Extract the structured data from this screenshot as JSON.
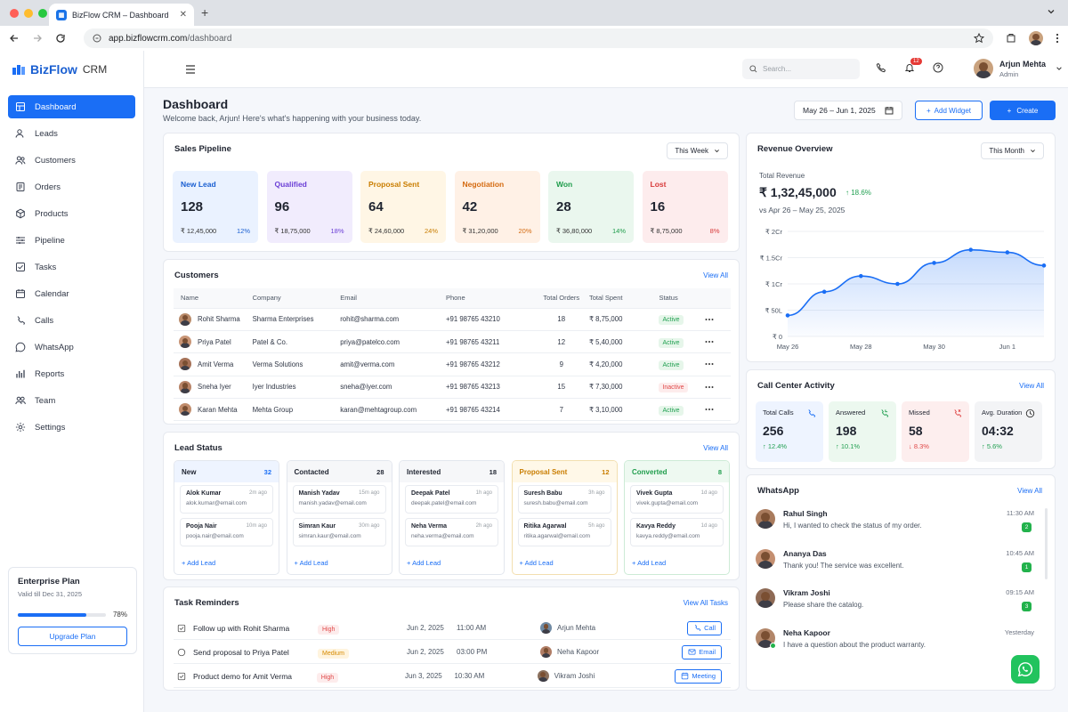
{
  "browser": {
    "tab_title": "BizFlow CRM – Dashboard",
    "url_domain": "app.bizflowcrm.com",
    "url_path": "/dashboard"
  },
  "brand": {
    "name": "BizFlow",
    "suffix": "CRM",
    "accent": "#1a6ef5"
  },
  "sidebar": {
    "items": [
      {
        "label": "Dashboard",
        "icon": "dashboard-icon"
      },
      {
        "label": "Leads",
        "icon": "leads-icon"
      },
      {
        "label": "Customers",
        "icon": "customers-icon"
      },
      {
        "label": "Orders",
        "icon": "orders-icon"
      },
      {
        "label": "Products",
        "icon": "products-icon"
      },
      {
        "label": "Pipeline",
        "icon": "pipeline-icon"
      },
      {
        "label": "Tasks",
        "icon": "tasks-icon"
      },
      {
        "label": "Calendar",
        "icon": "calendar-icon"
      },
      {
        "label": "Calls",
        "icon": "phone-icon"
      },
      {
        "label": "WhatsApp",
        "icon": "whatsapp-icon"
      },
      {
        "label": "Reports",
        "icon": "reports-icon"
      },
      {
        "label": "Team",
        "icon": "team-icon"
      },
      {
        "label": "Settings",
        "icon": "gear-icon"
      }
    ],
    "plan": {
      "title": "Enterprise Plan",
      "valid": "Valid till Dec 31, 2025",
      "percent": "78%",
      "progress": 0.78,
      "button": "Upgrade Plan"
    }
  },
  "topbar": {
    "search_placeholder": "Search...",
    "notif_count": "12",
    "user_name": "Arjun Mehta",
    "user_role": "Admin"
  },
  "header": {
    "title": "Dashboard",
    "subtitle": "Welcome back, Arjun! Here's what's happening with your business today.",
    "date_range": "May 26 – Jun 1, 2025",
    "add_widget": "Add Widget",
    "create": "Create"
  },
  "pipeline": {
    "title": "Sales Pipeline",
    "period": "This Week",
    "stages": [
      {
        "label": "New Lead",
        "count": "128",
        "amount": "₹ 12,45,000",
        "pct": "12%",
        "bg": "#eaf2ff",
        "fg": "#1a5fd1"
      },
      {
        "label": "Qualified",
        "count": "96",
        "amount": "₹ 18,75,000",
        "pct": "18%",
        "bg": "#f1ecfd",
        "fg": "#6b3fd6"
      },
      {
        "label": "Proposal Sent",
        "count": "64",
        "amount": "₹ 24,60,000",
        "pct": "24%",
        "bg": "#fff6e5",
        "fg": "#c97d00"
      },
      {
        "label": "Negotiation",
        "count": "42",
        "amount": "₹ 31,20,000",
        "pct": "20%",
        "bg": "#fff1e6",
        "fg": "#d46a10"
      },
      {
        "label": "Won",
        "count": "28",
        "amount": "₹ 36,80,000",
        "pct": "14%",
        "bg": "#eaf7ee",
        "fg": "#1f9d4c"
      },
      {
        "label": "Lost",
        "count": "16",
        "amount": "₹ 8,75,000",
        "pct": "8%",
        "bg": "#fdeced",
        "fg": "#d83a3a"
      }
    ]
  },
  "customers": {
    "title": "Customers",
    "view_all": "View All",
    "columns": [
      "Name",
      "Company",
      "Email",
      "Phone",
      "Total Orders",
      "Total Spent",
      "Status"
    ],
    "rows": [
      {
        "name": "Rohit Sharma",
        "company": "Sharma Enterprises",
        "email": "rohit@sharma.com",
        "phone": "+91 98765 43210",
        "orders": "18",
        "spent": "₹ 8,75,000",
        "status": "Active"
      },
      {
        "name": "Priya Patel",
        "company": "Patel & Co.",
        "email": "priya@patelco.com",
        "phone": "+91 98765 43211",
        "orders": "12",
        "spent": "₹ 5,40,000",
        "status": "Active"
      },
      {
        "name": "Amit Verma",
        "company": "Verma Solutions",
        "email": "amit@verma.com",
        "phone": "+91 98765 43212",
        "orders": "9",
        "spent": "₹ 4,20,000",
        "status": "Active"
      },
      {
        "name": "Sneha Iyer",
        "company": "Iyer Industries",
        "email": "sneha@iyer.com",
        "phone": "+91 98765 43213",
        "orders": "15",
        "spent": "₹ 7,30,000",
        "status": "Inactive"
      },
      {
        "name": "Karan Mehta",
        "company": "Mehta Group",
        "email": "karan@mehtagroup.com",
        "phone": "+91 98765 43214",
        "orders": "7",
        "spent": "₹ 3,10,000",
        "status": "Active"
      }
    ]
  },
  "lead_status": {
    "title": "Lead Status",
    "view_all": "View All",
    "add_label": "Add Lead",
    "columns": [
      {
        "label": "New",
        "count": "32",
        "head_bg": "#eef4ff",
        "fg": "#1f2430",
        "count_fg": "#1a6ef5",
        "border": "#e3e7ee",
        "cards": [
          {
            "name": "Alok Kumar",
            "email": "alok.kumar@email.com",
            "time": "2m ago"
          },
          {
            "name": "Pooja Nair",
            "email": "pooja.nair@email.com",
            "time": "10m ago"
          }
        ]
      },
      {
        "label": "Contacted",
        "count": "28",
        "head_bg": "#f6f7f9",
        "fg": "#1f2430",
        "count_fg": "#1f2430",
        "border": "#e3e7ee",
        "cards": [
          {
            "name": "Manish Yadav",
            "email": "manish.yadav@email.com",
            "time": "15m ago"
          },
          {
            "name": "Simran Kaur",
            "email": "simran.kaur@email.com",
            "time": "30m ago"
          }
        ]
      },
      {
        "label": "Interested",
        "count": "18",
        "head_bg": "#f6f7f9",
        "fg": "#1f2430",
        "count_fg": "#1f2430",
        "border": "#e3e7ee",
        "cards": [
          {
            "name": "Deepak Patel",
            "email": "deepak.patel@email.com",
            "time": "1h ago"
          },
          {
            "name": "Neha Verma",
            "email": "neha.verma@email.com",
            "time": "2h ago"
          }
        ]
      },
      {
        "label": "Proposal Sent",
        "count": "12",
        "head_bg": "#fff8e8",
        "fg": "#c97d00",
        "count_fg": "#c97d00",
        "border": "#f3dfb0",
        "cards": [
          {
            "name": "Suresh Babu",
            "email": "suresh.babu@email.com",
            "time": "3h ago"
          },
          {
            "name": "Ritika Agarwal",
            "email": "ritika.agarwal@email.com",
            "time": "5h ago"
          }
        ]
      },
      {
        "label": "Converted",
        "count": "8",
        "head_bg": "#eef9f1",
        "fg": "#1f9d4c",
        "count_fg": "#1f9d4c",
        "border": "#cdebd6",
        "cards": [
          {
            "name": "Vivek Gupta",
            "email": "vivek.gupta@email.com",
            "time": "1d ago"
          },
          {
            "name": "Kavya Reddy",
            "email": "kavya.reddy@email.com",
            "time": "1d ago"
          }
        ]
      }
    ]
  },
  "tasks": {
    "title": "Task Reminders",
    "view_all": "View All Tasks",
    "rows": [
      {
        "name": "Follow up with Rohit Sharma",
        "priority": "High",
        "date": "Jun 2, 2025",
        "time": "11:00 AM",
        "assignee": "Arjun Mehta",
        "action": "Call",
        "icon": "phone-icon",
        "done": true
      },
      {
        "name": "Send proposal to Priya Patel",
        "priority": "Medium",
        "date": "Jun 2, 2025",
        "time": "03:00 PM",
        "assignee": "Neha Kapoor",
        "action": "Email",
        "icon": "mail-icon",
        "done": false
      },
      {
        "name": "Product demo for Amit Verma",
        "priority": "High",
        "date": "Jun 3, 2025",
        "time": "10:30 AM",
        "assignee": "Vikram Joshi",
        "action": "Meeting",
        "icon": "calendar-icon",
        "done": true
      }
    ]
  },
  "revenue": {
    "title": "Revenue Overview",
    "period": "This Month",
    "label": "Total Revenue",
    "value": "₹ 1,32,45,000",
    "change": "18.6%",
    "compare": "vs Apr 26 – May 25, 2025"
  },
  "chart_data": {
    "type": "area",
    "title": "",
    "x": [
      "May 26",
      "May 27",
      "May 28",
      "May 29",
      "May 30",
      "May 31",
      "Jun 1",
      "Jun 2"
    ],
    "x_ticks": [
      "May 26",
      "May 28",
      "May 30",
      "Jun 1"
    ],
    "y_ticks": [
      "₹ 0",
      "₹ 50L",
      "₹ 1Cr",
      "₹ 1.5Cr",
      "₹ 2Cr"
    ],
    "values_lakh": [
      40,
      85,
      115,
      100,
      140,
      165,
      160,
      135
    ],
    "ylim": [
      0,
      200
    ],
    "grid": true,
    "legend": "none",
    "color": "#1a6ef5"
  },
  "calls": {
    "title": "Call Center Activity",
    "view_all": "View All",
    "boxes": [
      {
        "label": "Total Calls",
        "value": "256",
        "change": "↑ 12.4%",
        "bg": "#eef4ff",
        "fg": "#22a052",
        "icon": "phone-icon",
        "icolor": "#1a6ef5"
      },
      {
        "label": "Answered",
        "value": "198",
        "change": "↑ 10.1%",
        "bg": "#ecf8ef",
        "fg": "#22a052",
        "icon": "phone-answered-icon",
        "icolor": "#22a052"
      },
      {
        "label": "Missed",
        "value": "58",
        "change": "↓ 8.3%",
        "bg": "#fdeeee",
        "fg": "#e04848",
        "icon": "phone-missed-icon",
        "icolor": "#e04848"
      },
      {
        "label": "Avg. Duration",
        "value": "04:32",
        "change": "↑ 5.6%",
        "bg": "#f3f4f6",
        "fg": "#22a052",
        "icon": "clock-icon",
        "icolor": "#333"
      }
    ]
  },
  "whatsapp": {
    "title": "WhatsApp",
    "view_all": "View All",
    "messages": [
      {
        "name": "Rahul Singh",
        "text": "Hi, I wanted to check the status of my order.",
        "time": "11:30 AM",
        "count": "2"
      },
      {
        "name": "Ananya Das",
        "text": "Thank you! The service was excellent.",
        "time": "10:45 AM",
        "count": "1"
      },
      {
        "name": "Vikram Joshi",
        "text": "Please share the catalog.",
        "time": "09:15 AM",
        "count": "3"
      },
      {
        "name": "Neha Kapoor",
        "text": "I have a question about the product warranty.",
        "time": "Yesterday",
        "count": ""
      }
    ]
  }
}
